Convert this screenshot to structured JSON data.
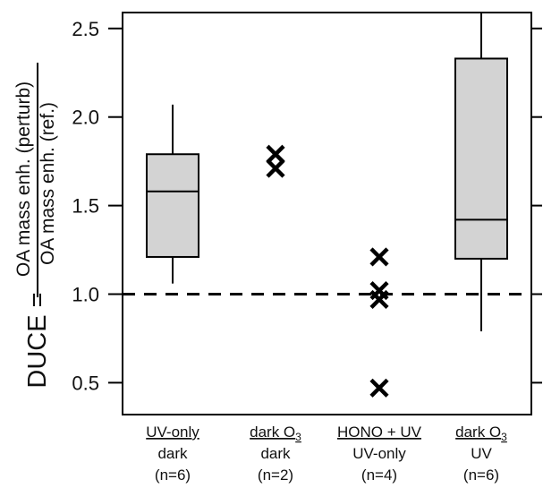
{
  "chart_data": {
    "type": "box",
    "ylabel": {
      "prefix": "DUCE =",
      "numerator": "OA mass enh. (perturb)",
      "denominator": "OA mass enh. (ref.)"
    },
    "ylim": [
      0.32,
      2.59
    ],
    "yticks": [
      {
        "value": 0.5,
        "label": "0.5"
      },
      {
        "value": 1.0,
        "label": "1.0"
      },
      {
        "value": 1.5,
        "label": "1.5"
      },
      {
        "value": 2.0,
        "label": "2.0"
      },
      {
        "value": 2.5,
        "label": "2.5"
      }
    ],
    "reference_line": {
      "value": 1.0,
      "style": "dashed"
    },
    "box_fill": "#d3d3d3",
    "groups": [
      {
        "label_top": "UV-only",
        "label_mid": "dark",
        "label_n": "(n=6)",
        "kind": "box",
        "whisker_low": 1.06,
        "q1": 1.21,
        "median": 1.58,
        "q3": 1.79,
        "whisker_high": 2.07
      },
      {
        "label_top": "dark O",
        "label_top_sub": "3",
        "label_mid": "dark",
        "label_n": "(n=2)",
        "kind": "points",
        "points": [
          1.79,
          1.71
        ]
      },
      {
        "label_top": "HONO + UV",
        "label_mid": "UV-only",
        "label_n": "(n=4)",
        "kind": "points",
        "points": [
          1.21,
          1.02,
          0.97,
          0.47
        ]
      },
      {
        "label_top": "dark O",
        "label_top_sub": "3",
        "label_mid": "UV",
        "label_n": "(n=6)",
        "kind": "box",
        "whisker_low": 0.79,
        "q1": 1.2,
        "median": 1.42,
        "q3": 2.33,
        "whisker_high": 2.59
      }
    ]
  }
}
